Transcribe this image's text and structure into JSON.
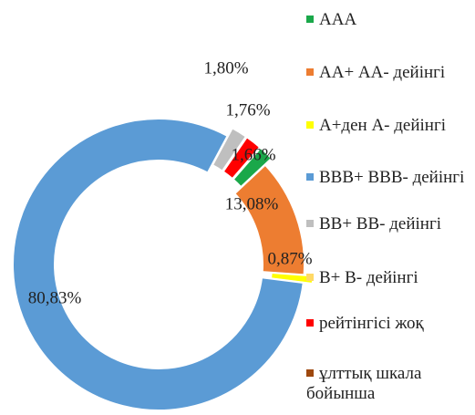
{
  "chart_data": {
    "type": "donut",
    "categories": [
      "ААА",
      "АА+ АА- дейінгі",
      "А+ден А- дейінгі",
      "BBB+ BBB- дейінгі",
      "BB+ BB- дейінгі",
      "B+ B- дейінгі",
      "рейтінгісі жоқ",
      "ұлттық шкала бойынша"
    ],
    "values": [
      1.66,
      13.08,
      0.87,
      80.83,
      1.76,
      0,
      1.8,
      0
    ],
    "value_labels": [
      "1,66%",
      "13,08%",
      "0,87%",
      "80,83%",
      "1,76%",
      null,
      "1,80%",
      null
    ],
    "colors": [
      "#1aa84a",
      "#ed7d31",
      "#ffff00",
      "#5b9bd5",
      "#bfbfbf",
      "#ffd966",
      "#ff0000",
      "#9e480e"
    ],
    "legend": "right"
  }
}
